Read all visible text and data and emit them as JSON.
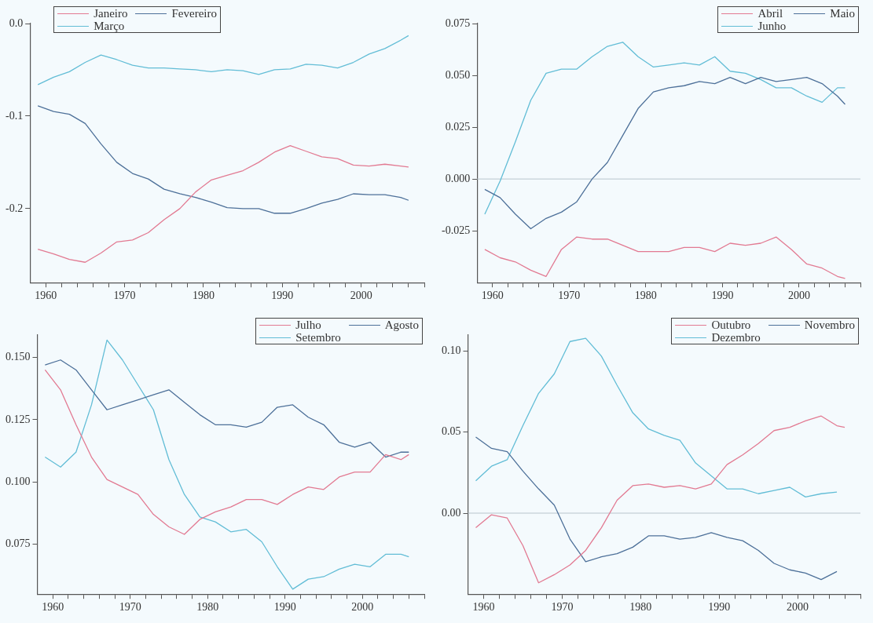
{
  "chart_data": [
    {
      "type": "line",
      "x": [
        1959,
        1961,
        1963,
        1965,
        1967,
        1969,
        1971,
        1973,
        1975,
        1977,
        1979,
        1981,
        1983,
        1985,
        1987,
        1989,
        1991,
        1993,
        1995,
        1997,
        1999,
        2001,
        2003,
        2005,
        2006
      ],
      "series": [
        {
          "name": "Janeiro",
          "color": "#e27a92",
          "values": [
            -0.244,
            -0.249,
            -0.255,
            -0.258,
            -0.248,
            -0.236,
            -0.234,
            -0.226,
            -0.212,
            -0.2,
            -0.182,
            -0.169,
            -0.164,
            -0.159,
            -0.15,
            -0.139,
            -0.132,
            -0.138,
            -0.144,
            -0.146,
            -0.153,
            -0.154,
            -0.152,
            -0.154,
            -0.155
          ]
        },
        {
          "name": "Fevereiro",
          "color": "#4d7099",
          "values": [
            -0.089,
            -0.095,
            -0.098,
            -0.108,
            -0.13,
            -0.15,
            -0.162,
            -0.168,
            -0.179,
            -0.184,
            -0.188,
            -0.193,
            -0.199,
            -0.2,
            -0.2,
            -0.205,
            -0.205,
            -0.2,
            -0.194,
            -0.19,
            -0.184,
            -0.185,
            -0.185,
            -0.188,
            -0.191
          ]
        },
        {
          "name": "Março",
          "color": "#62bdd6",
          "values": [
            -0.066,
            -0.058,
            -0.052,
            -0.042,
            -0.034,
            -0.039,
            -0.045,
            -0.048,
            -0.048,
            -0.049,
            -0.05,
            -0.052,
            -0.05,
            -0.051,
            -0.055,
            -0.05,
            -0.049,
            -0.044,
            -0.045,
            -0.048,
            -0.042,
            -0.033,
            -0.027,
            -0.018,
            -0.013
          ]
        }
      ],
      "xlim": [
        1958,
        2008
      ],
      "xticks": [
        1960,
        {
          "value": 1962,
          "label": null
        },
        {
          "value": 1964,
          "label": null
        },
        {
          "value": 1966,
          "label": null
        },
        {
          "value": 1968,
          "label": null
        },
        1970,
        {
          "value": 1972,
          "label": null
        },
        {
          "value": 1974,
          "label": null
        },
        {
          "value": 1976,
          "label": null
        },
        {
          "value": 1978,
          "label": null
        },
        1980,
        {
          "value": 1982,
          "label": null
        },
        {
          "value": 1984,
          "label": null
        },
        {
          "value": 1986,
          "label": null
        },
        {
          "value": 1988,
          "label": null
        },
        1990,
        {
          "value": 1992,
          "label": null
        },
        {
          "value": 1994,
          "label": null
        },
        {
          "value": 1996,
          "label": null
        },
        {
          "value": 1998,
          "label": null
        },
        2000,
        {
          "value": 2002,
          "label": null
        },
        {
          "value": 2004,
          "label": null
        },
        {
          "value": 2006,
          "label": null
        },
        {
          "value": 2008,
          "label": null
        }
      ],
      "ylim": [
        -0.28,
        0
      ],
      "yticks": [
        {
          "value": 0,
          "label": "0.0"
        },
        {
          "value": -0.1,
          "label": "-0.1"
        },
        {
          "value": -0.2,
          "label": "-0.2"
        }
      ],
      "legend": "top left",
      "grid": false
    },
    {
      "type": "line",
      "x": [
        1959,
        1961,
        1963,
        1965,
        1967,
        1969,
        1971,
        1973,
        1975,
        1977,
        1979,
        1981,
        1983,
        1985,
        1987,
        1989,
        1991,
        1993,
        1995,
        1997,
        1999,
        2001,
        2003,
        2005,
        2006
      ],
      "series": [
        {
          "name": "Abril",
          "color": "#e27a92",
          "values": [
            -0.034,
            -0.038,
            -0.04,
            -0.044,
            -0.047,
            -0.034,
            -0.028,
            -0.029,
            -0.029,
            -0.032,
            -0.035,
            -0.035,
            -0.035,
            -0.033,
            -0.033,
            -0.035,
            -0.031,
            -0.032,
            -0.031,
            -0.028,
            -0.034,
            -0.041,
            -0.043,
            -0.047,
            -0.048
          ]
        },
        {
          "name": "Maio",
          "color": "#4d7099",
          "values": [
            -0.005,
            -0.009,
            -0.017,
            -0.024,
            -0.019,
            -0.016,
            -0.011,
            0.0,
            0.008,
            0.021,
            0.034,
            0.042,
            0.044,
            0.045,
            0.047,
            0.046,
            0.049,
            0.046,
            0.049,
            0.047,
            0.048,
            0.049,
            0.046,
            0.04,
            0.036
          ]
        },
        {
          "name": "Junho",
          "color": "#62bdd6",
          "values": [
            -0.017,
            -0.001,
            0.018,
            0.038,
            0.051,
            0.053,
            0.053,
            0.059,
            0.064,
            0.066,
            0.059,
            0.054,
            0.055,
            0.056,
            0.055,
            0.059,
            0.052,
            0.051,
            0.048,
            0.044,
            0.044,
            0.04,
            0.037,
            0.044,
            0.044
          ]
        }
      ],
      "xlim": [
        1958,
        2008
      ],
      "xticks": [
        1960,
        {
          "value": 1962,
          "label": null
        },
        {
          "value": 1964,
          "label": null
        },
        {
          "value": 1966,
          "label": null
        },
        {
          "value": 1968,
          "label": null
        },
        1970,
        {
          "value": 1972,
          "label": null
        },
        {
          "value": 1974,
          "label": null
        },
        {
          "value": 1976,
          "label": null
        },
        {
          "value": 1978,
          "label": null
        },
        1980,
        {
          "value": 1982,
          "label": null
        },
        {
          "value": 1984,
          "label": null
        },
        {
          "value": 1986,
          "label": null
        },
        {
          "value": 1988,
          "label": null
        },
        1990,
        {
          "value": 1992,
          "label": null
        },
        {
          "value": 1994,
          "label": null
        },
        {
          "value": 1996,
          "label": null
        },
        {
          "value": 1998,
          "label": null
        },
        2000,
        {
          "value": 2002,
          "label": null
        },
        {
          "value": 2004,
          "label": null
        },
        {
          "value": 2006,
          "label": null
        },
        {
          "value": 2008,
          "label": null
        }
      ],
      "ylim": [
        -0.05,
        0.075
      ],
      "yticks": [
        {
          "value": 0.075,
          "label": "0.075"
        },
        {
          "value": 0.05,
          "label": "0.050"
        },
        {
          "value": 0.025,
          "label": "0.025"
        },
        {
          "value": 0,
          "label": "0.000"
        },
        {
          "value": -0.025,
          "label": "-0.025"
        }
      ],
      "ref_lines": [
        {
          "axis": "y",
          "value": 0,
          "color": "#b8c4cc"
        }
      ],
      "legend": "top right",
      "grid": false
    },
    {
      "type": "line",
      "x": [
        1959,
        1961,
        1963,
        1965,
        1967,
        1969,
        1971,
        1973,
        1975,
        1977,
        1979,
        1981,
        1983,
        1985,
        1987,
        1989,
        1991,
        1993,
        1995,
        1997,
        1999,
        2001,
        2003,
        2005,
        2006
      ],
      "series": [
        {
          "name": "Julho",
          "color": "#e27a92",
          "values": [
            0.145,
            0.137,
            0.123,
            0.11,
            0.101,
            0.098,
            0.095,
            0.087,
            0.082,
            0.079,
            0.085,
            0.088,
            0.09,
            0.093,
            0.093,
            0.091,
            0.095,
            0.098,
            0.097,
            0.102,
            0.104,
            0.104,
            0.111,
            0.109,
            0.111
          ]
        },
        {
          "name": "Agosto",
          "color": "#4d7099",
          "values": [
            0.147,
            0.149,
            0.145,
            0.137,
            0.129,
            0.131,
            0.133,
            0.135,
            0.137,
            0.132,
            0.127,
            0.123,
            0.123,
            0.122,
            0.124,
            0.13,
            0.131,
            0.126,
            0.123,
            0.116,
            0.114,
            0.116,
            0.11,
            0.112,
            0.112
          ]
        },
        {
          "name": "Setembro",
          "color": "#62bdd6",
          "values": [
            0.11,
            0.106,
            0.112,
            0.131,
            0.157,
            0.149,
            0.139,
            0.129,
            0.109,
            0.095,
            0.086,
            0.084,
            0.08,
            0.081,
            0.076,
            0.066,
            0.057,
            0.061,
            0.062,
            0.065,
            0.067,
            0.066,
            0.071,
            0.071,
            0.07
          ]
        }
      ],
      "xlim": [
        1958,
        2008
      ],
      "xticks": [
        1960,
        {
          "value": 1962,
          "label": null
        },
        {
          "value": 1964,
          "label": null
        },
        {
          "value": 1966,
          "label": null
        },
        {
          "value": 1968,
          "label": null
        },
        1970,
        {
          "value": 1972,
          "label": null
        },
        {
          "value": 1974,
          "label": null
        },
        {
          "value": 1976,
          "label": null
        },
        {
          "value": 1978,
          "label": null
        },
        1980,
        {
          "value": 1982,
          "label": null
        },
        {
          "value": 1984,
          "label": null
        },
        {
          "value": 1986,
          "label": null
        },
        {
          "value": 1988,
          "label": null
        },
        1990,
        {
          "value": 1992,
          "label": null
        },
        {
          "value": 1994,
          "label": null
        },
        {
          "value": 1996,
          "label": null
        },
        {
          "value": 1998,
          "label": null
        },
        2000,
        {
          "value": 2002,
          "label": null
        },
        {
          "value": 2004,
          "label": null
        },
        {
          "value": 2006,
          "label": null
        },
        {
          "value": 2008,
          "label": null
        }
      ],
      "ylim": [
        0.055,
        0.159
      ],
      "yticks": [
        {
          "value": 0.15,
          "label": "0.150"
        },
        {
          "value": 0.125,
          "label": "0.125"
        },
        {
          "value": 0.1,
          "label": "0.100"
        },
        {
          "value": 0.075,
          "label": "0.075"
        }
      ],
      "legend": "top right",
      "grid": false
    },
    {
      "type": "line",
      "x": [
        1959,
        1961,
        1963,
        1965,
        1967,
        1969,
        1971,
        1973,
        1975,
        1977,
        1979,
        1981,
        1983,
        1985,
        1987,
        1989,
        1991,
        1993,
        1995,
        1997,
        1999,
        2001,
        2003,
        2005,
        2006
      ],
      "series": [
        {
          "name": "Outubro",
          "color": "#e27a92",
          "values": [
            -0.009,
            -0.001,
            -0.003,
            -0.02,
            -0.043,
            -0.038,
            -0.032,
            -0.023,
            -0.009,
            0.008,
            0.017,
            0.018,
            0.016,
            0.017,
            0.015,
            0.018,
            0.03,
            0.036,
            0.043,
            0.051,
            0.053,
            0.057,
            0.06,
            0.054,
            0.053
          ]
        },
        {
          "name": "Novembro",
          "color": "#4d7099",
          "values": [
            0.047,
            0.04,
            0.038,
            0.026,
            0.015,
            0.005,
            -0.016,
            -0.03,
            -0.027,
            -0.025,
            -0.021,
            -0.014,
            -0.014,
            -0.016,
            -0.015,
            -0.012,
            -0.015,
            -0.017,
            -0.023,
            -0.031,
            -0.035,
            -0.037,
            -0.041,
            -0.036,
            null
          ]
        },
        {
          "name": "Dezembro",
          "color": "#62bdd6",
          "values": [
            0.02,
            0.029,
            0.033,
            0.054,
            0.074,
            0.086,
            0.106,
            0.108,
            0.097,
            0.079,
            0.062,
            0.052,
            0.048,
            0.045,
            0.031,
            0.023,
            0.015,
            0.015,
            0.012,
            0.014,
            0.016,
            0.01,
            0.012,
            0.013,
            null
          ]
        }
      ],
      "xlim": [
        1958,
        2008
      ],
      "xticks": [
        1960,
        {
          "value": 1962,
          "label": null
        },
        {
          "value": 1964,
          "label": null
        },
        {
          "value": 1966,
          "label": null
        },
        {
          "value": 1968,
          "label": null
        },
        1970,
        {
          "value": 1972,
          "label": null
        },
        {
          "value": 1974,
          "label": null
        },
        {
          "value": 1976,
          "label": null
        },
        {
          "value": 1978,
          "label": null
        },
        1980,
        {
          "value": 1982,
          "label": null
        },
        {
          "value": 1984,
          "label": null
        },
        {
          "value": 1986,
          "label": null
        },
        {
          "value": 1988,
          "label": null
        },
        1990,
        {
          "value": 1992,
          "label": null
        },
        {
          "value": 1994,
          "label": null
        },
        {
          "value": 1996,
          "label": null
        },
        {
          "value": 1998,
          "label": null
        },
        2000,
        {
          "value": 2002,
          "label": null
        },
        {
          "value": 2004,
          "label": null
        },
        {
          "value": 2006,
          "label": null
        },
        {
          "value": 2008,
          "label": null
        }
      ],
      "ylim": [
        -0.05,
        0.11
      ],
      "yticks": [
        {
          "value": 0.1,
          "label": "0.10"
        },
        {
          "value": 0.05,
          "label": "0.05"
        },
        {
          "value": 0,
          "label": "0.00"
        }
      ],
      "ref_lines": [
        {
          "axis": "y",
          "value": 0,
          "color": "#b8c4cc"
        }
      ],
      "legend": "top right",
      "grid": false
    }
  ]
}
